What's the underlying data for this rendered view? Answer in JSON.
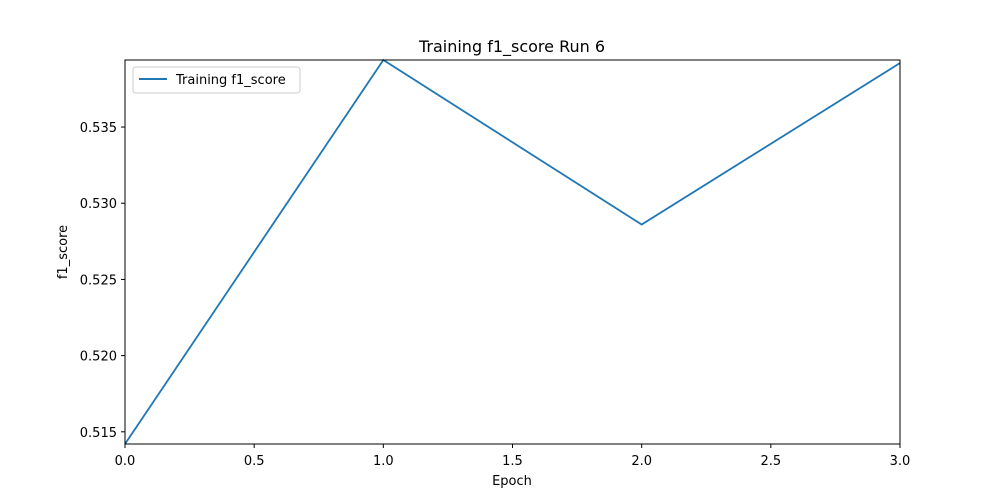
{
  "chart_data": {
    "type": "line",
    "title": "Training f1_score Run 6",
    "xlabel": "Epoch",
    "ylabel": "f1_score",
    "x": [
      0,
      1,
      2,
      3
    ],
    "series": [
      {
        "name": "Training f1_score",
        "values": [
          0.5142,
          0.5394,
          0.5286,
          0.5392
        ],
        "color": "#1f77b4"
      }
    ],
    "xlim": [
      0,
      3
    ],
    "ylim": [
      0.5142,
      0.5394
    ],
    "xticks": [
      0.0,
      0.5,
      1.0,
      1.5,
      2.0,
      2.5,
      3.0
    ],
    "xtick_labels": [
      "0.0",
      "0.5",
      "1.0",
      "1.5",
      "2.0",
      "2.5",
      "3.0"
    ],
    "yticks": [
      0.515,
      0.52,
      0.525,
      0.53,
      0.535
    ],
    "ytick_labels": [
      "0.515",
      "0.520",
      "0.525",
      "0.530",
      "0.535"
    ],
    "grid": false,
    "legend_position": "upper-left"
  }
}
